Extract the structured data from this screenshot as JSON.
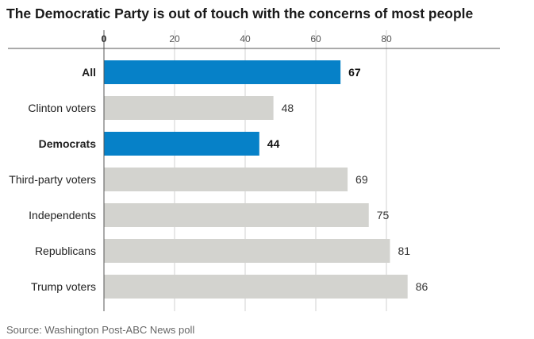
{
  "chart_data": {
    "type": "bar",
    "orientation": "horizontal",
    "title": "The Democratic Party is out of touch with the concerns of most people",
    "categories": [
      "All",
      "Clinton voters",
      "Democrats",
      "Third-party voters",
      "Independents",
      "Republicans",
      "Trump voters"
    ],
    "values": [
      67,
      48,
      44,
      69,
      75,
      81,
      86
    ],
    "highlighted": [
      true,
      false,
      true,
      false,
      false,
      false,
      false
    ],
    "xlim": [
      0,
      90
    ],
    "xticks": [
      0,
      20,
      40,
      60,
      80
    ],
    "xtick_labels": [
      "0",
      "20",
      "40",
      "60",
      "80"
    ],
    "axis_position": "top",
    "grid": true,
    "colors": {
      "highlight": "#0681c8",
      "default": "#d3d3cf",
      "grid": "#d0d0d0"
    },
    "source": "Source: Washington Post-ABC News poll"
  }
}
